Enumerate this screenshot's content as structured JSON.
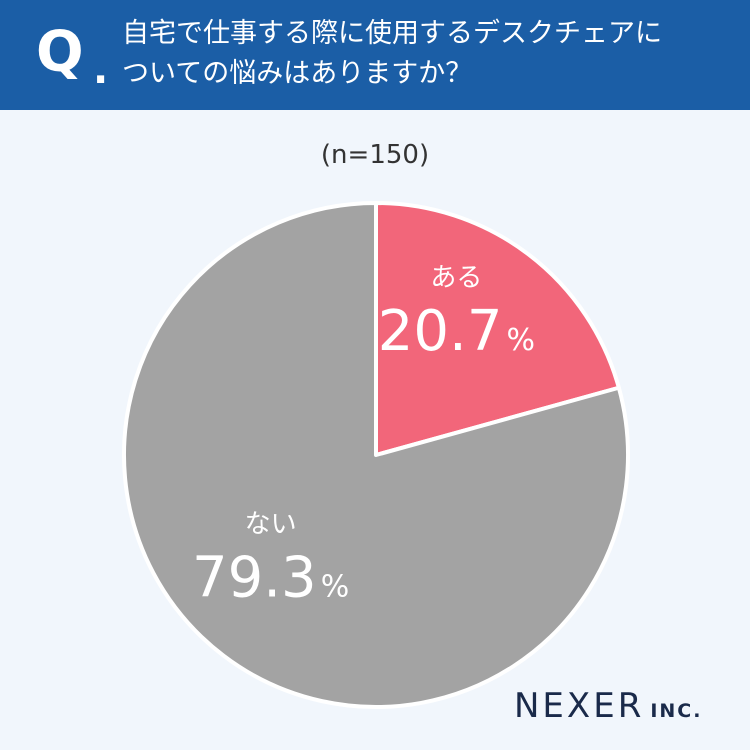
{
  "header": {
    "q_mark": "Q",
    "q_dot": ".",
    "question_lines": [
      "自宅で仕事する際に使用するデスクチェアに",
      "ついての悩みはありますか？"
    ]
  },
  "sample_size": "(n=150)",
  "brand": {
    "name": "NEXER",
    "suffix": "INC."
  },
  "colors": {
    "header": "#1b5ea6",
    "yes": "#f2667a",
    "no": "#a3a3a3",
    "background": "#f1f6fc"
  },
  "chart_data": {
    "type": "pie",
    "title": "",
    "unit": "%",
    "slices": [
      {
        "label": "ある",
        "value": 20.7,
        "display": "20.7",
        "color": "#f2667a"
      },
      {
        "label": "ない",
        "value": 79.3,
        "display": "79.3",
        "color": "#a3a3a3"
      }
    ]
  }
}
